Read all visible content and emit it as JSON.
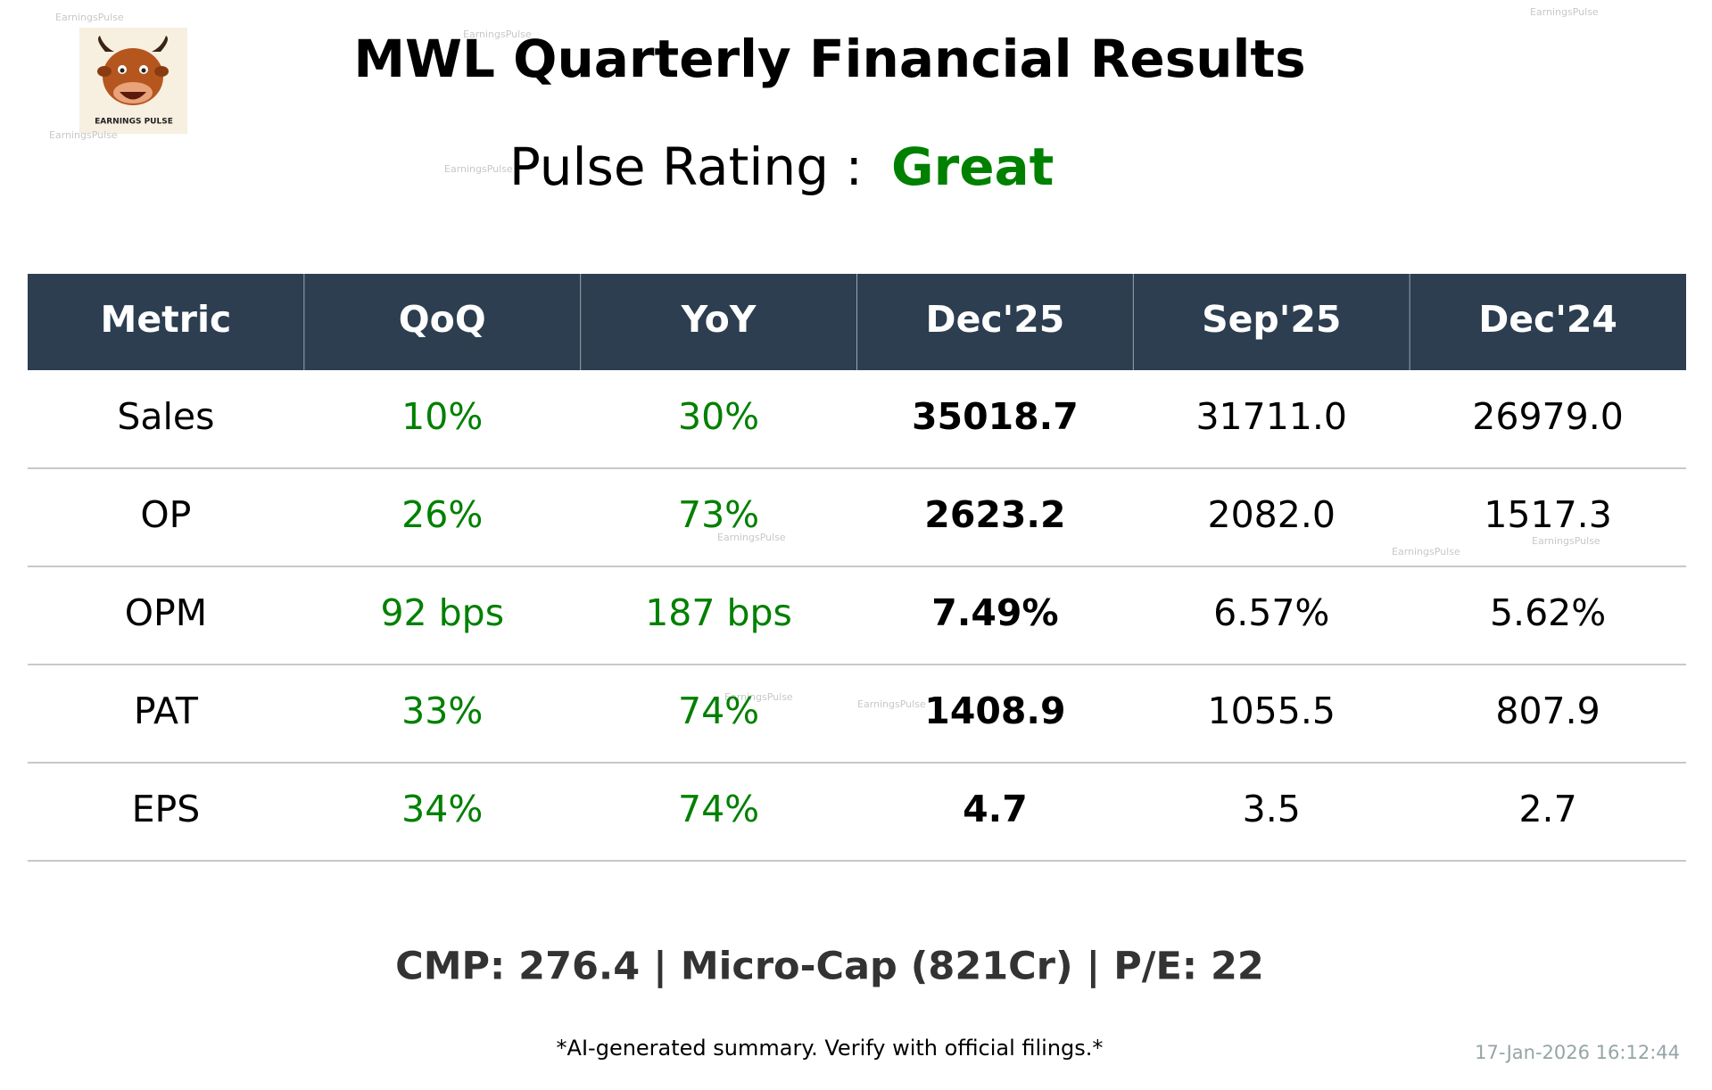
{
  "header": {
    "title": "MWL Quarterly Financial Results"
  },
  "logo": {
    "text": "EARNINGS PULSE"
  },
  "watermark": "EarningsPulse",
  "pulse": {
    "label": "Pulse Rating :",
    "value": "Great"
  },
  "table": {
    "columns": [
      "Metric",
      "QoQ",
      "YoY",
      "Dec'25",
      "Sep'25",
      "Dec'24"
    ],
    "rows": [
      [
        "Sales",
        "10%",
        "30%",
        "35018.7",
        "31711.0",
        "26979.0"
      ],
      [
        "OP",
        "26%",
        "73%",
        "2623.2",
        "2082.0",
        "1517.3"
      ],
      [
        "OPM",
        "92 bps",
        "187 bps",
        "7.49%",
        "6.57%",
        "5.62%"
      ],
      [
        "PAT",
        "33%",
        "74%",
        "1408.9",
        "1055.5",
        "807.9"
      ],
      [
        "EPS",
        "34%",
        "74%",
        "4.7",
        "3.5",
        "2.7"
      ]
    ]
  },
  "footer": {
    "summary": "CMP: 276.4 | Micro-Cap (821Cr) | P/E: 22",
    "disclaimer": "*AI-generated summary. Verify with official filings.*",
    "timestamp": "17-Jan-2026 16:12:44"
  }
}
